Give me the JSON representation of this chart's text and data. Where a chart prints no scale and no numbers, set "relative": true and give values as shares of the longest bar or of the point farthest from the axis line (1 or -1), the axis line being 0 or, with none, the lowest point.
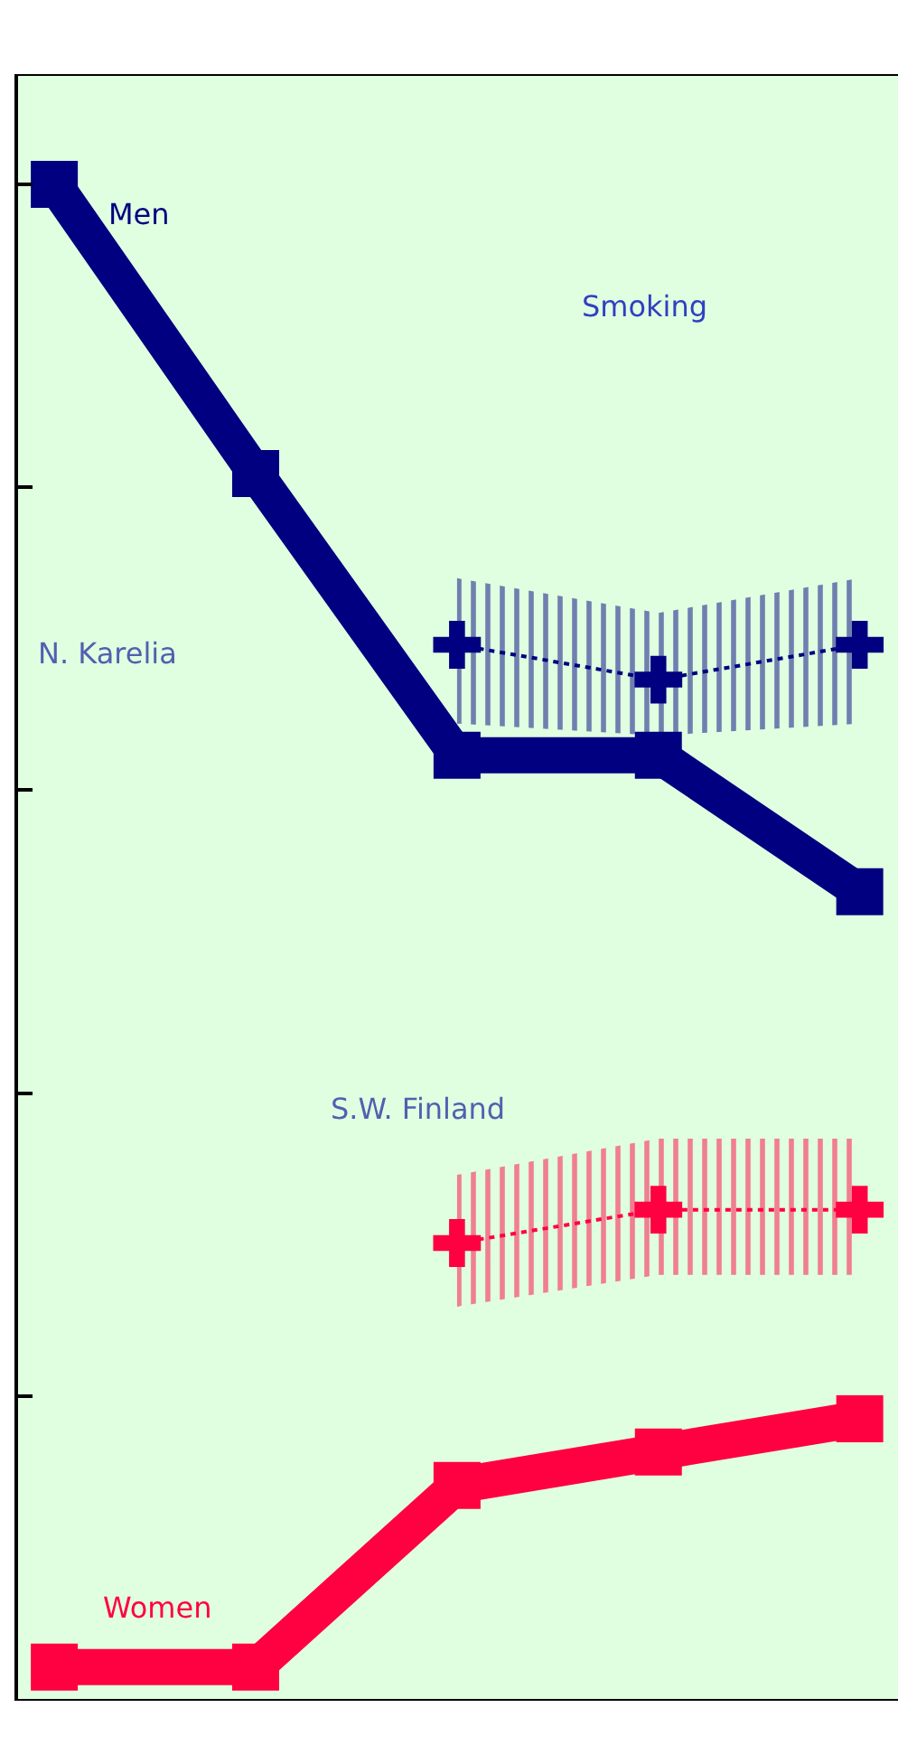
{
  "chart_data": {
    "type": "line",
    "relative": true,
    "categories": [
      null,
      null,
      null,
      null,
      null
    ],
    "series": [
      {
        "name": "Men",
        "color": "#000080",
        "values": [
          1,
          0.809,
          0.623,
          0.623,
          0.533
        ],
        "marker": "square"
      },
      {
        "name": "Women",
        "color": "#ff0040",
        "values": [
          0.021,
          0.021,
          0.141,
          0.163,
          0.185
        ],
        "marker": "square"
      },
      {
        "type": "line",
        "line_style": "dotted",
        "color": "#000080",
        "values": [
          null,
          null,
          0.696,
          0.673,
          0.696
        ],
        "lower": [
          null,
          null,
          0.644,
          0.636,
          0.644
        ],
        "upper": [
          null,
          null,
          0.74,
          0.717,
          0.74
        ],
        "marker": "cross"
      },
      {
        "type": "line",
        "line_style": "dotted",
        "color": "#ff0040",
        "values": [
          null,
          null,
          0.301,
          0.323,
          0.323
        ],
        "lower": [
          null,
          null,
          0.259,
          0.28,
          0.28
        ],
        "upper": [
          null,
          null,
          0.346,
          0.37,
          0.37
        ],
        "marker": "cross"
      }
    ],
    "annotations": [
      "Smoking",
      "N. Karelia",
      "S.W. Finland"
    ],
    "grid": false,
    "legend": false
  }
}
